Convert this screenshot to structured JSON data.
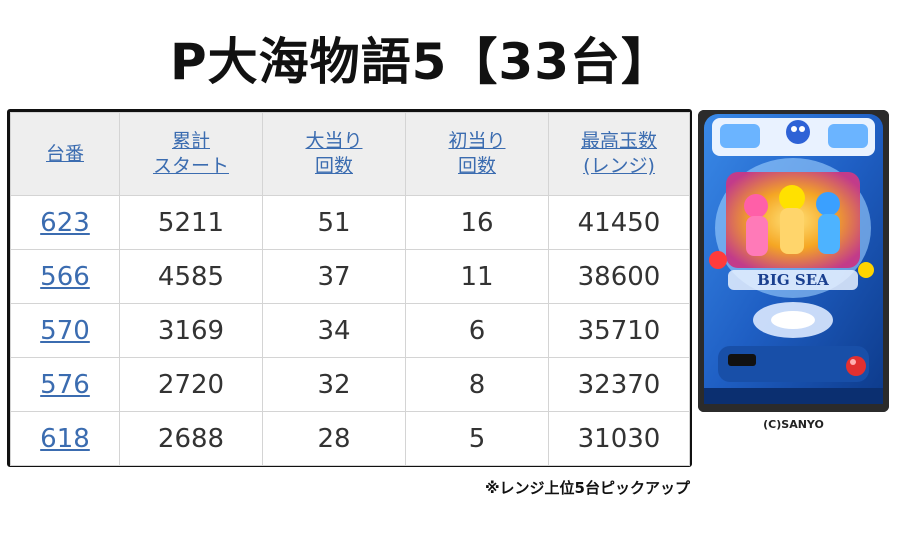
{
  "title": "P大海物語5【33台】",
  "table": {
    "headers": [
      {
        "line1": "台番",
        "line2": ""
      },
      {
        "line1": "累計",
        "line2": "スタート"
      },
      {
        "line1": "大当り",
        "line2": "回数"
      },
      {
        "line1": "初当り",
        "line2": "回数"
      },
      {
        "line1": "最高玉数",
        "line2": "(レンジ)"
      }
    ],
    "rows": [
      [
        "623",
        "5211",
        "51",
        "16",
        "41450"
      ],
      [
        "566",
        "4585",
        "37",
        "11",
        "38600"
      ],
      [
        "570",
        "3169",
        "34",
        "6",
        "35710"
      ],
      [
        "576",
        "2720",
        "32",
        "8",
        "32370"
      ],
      [
        "618",
        "2688",
        "28",
        "5",
        "31030"
      ]
    ]
  },
  "footnote": "※レンジ上位5台ピックアップ",
  "image": {
    "logo_text": "BIG SEA",
    "copyright": "(C)SANYO"
  },
  "colors": {
    "link": "#3b6cb0",
    "header_bg": "#eeeeee",
    "frame": "#111111",
    "machine_blue": "#1f5fc4"
  }
}
